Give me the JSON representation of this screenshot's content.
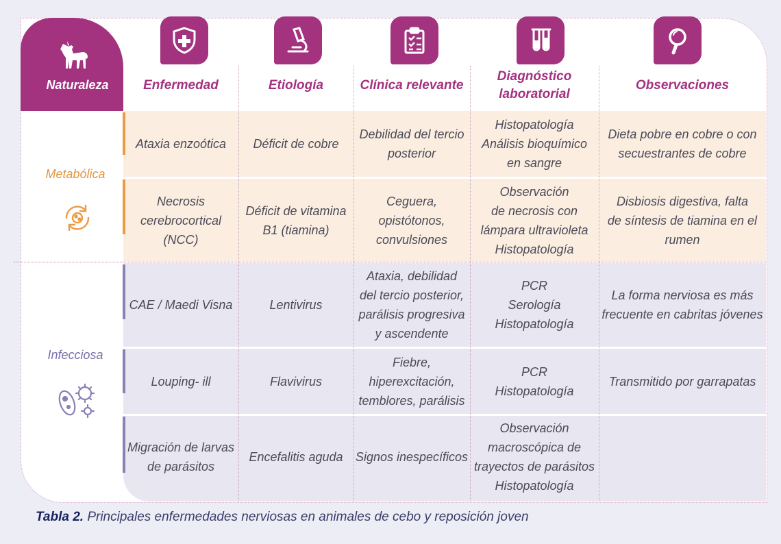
{
  "colors": {
    "accent": "#a3327f",
    "metabolic": "#ec9b45",
    "infectious": "#8b80b6"
  },
  "header": {
    "naturaleza": "Naturaleza",
    "columns": [
      {
        "label": "Enfermedad",
        "icon": "shield-cross-icon"
      },
      {
        "label": "Etiología",
        "icon": "microscope-icon"
      },
      {
        "label": "Clínica relevante",
        "icon": "clipboard-icon"
      },
      {
        "label": "Diagnóstico\nlaboratorial",
        "icon": "test-tubes-icon"
      },
      {
        "label": "Observaciones",
        "icon": "magnifier-icon"
      }
    ]
  },
  "groups": [
    {
      "label": "Metabólica",
      "icon": "cycle-icon",
      "rows": [
        [
          "Ataxia enzoótica",
          "Déficit de cobre",
          "Debilidad del tercio\nposterior",
          "Histopatología\nAnálisis bioquímico\nen sangre",
          "Dieta pobre en cobre o con\nsecuestrantes de cobre"
        ],
        [
          "Necrosis\ncerebrocortical\n(NCC)",
          "Déficit de vitamina\nB1 (tiamina)",
          "Ceguera,\nopistótonos,\nconvulsiones",
          "Observación\nde necrosis con\nlámpara ultravioleta\nHistopatología",
          "Disbiosis digestiva, falta\nde síntesis de tiamina en el\nrumen"
        ]
      ]
    },
    {
      "label": "Infecciosa",
      "icon": "microbes-icon",
      "rows": [
        [
          "CAE / Maedi Visna",
          "Lentivirus",
          "Ataxia, debilidad\ndel tercio posterior,\nparálisis progresiva\ny ascendente",
          "PCR\nSerología\nHistopatología",
          "La forma nerviosa es más\nfrecuente en cabritas jóvenes"
        ],
        [
          "Louping- ill",
          "Flavivirus",
          "Fiebre,\nhiperexcitación,\ntemblores, parálisis",
          "PCR\nHistopatología",
          "Transmitido por garrapatas"
        ],
        [
          "Migración de larvas\nde parásitos",
          "Encefalitis aguda",
          "Signos inespecíficos",
          "Observación\nmacroscópica de\ntrayectos de parásitos\nHistopatología",
          ""
        ]
      ]
    }
  ],
  "caption": {
    "label": "Tabla 2.",
    "text": " Principales enfermedades nerviosas en animales de cebo y reposición joven"
  }
}
